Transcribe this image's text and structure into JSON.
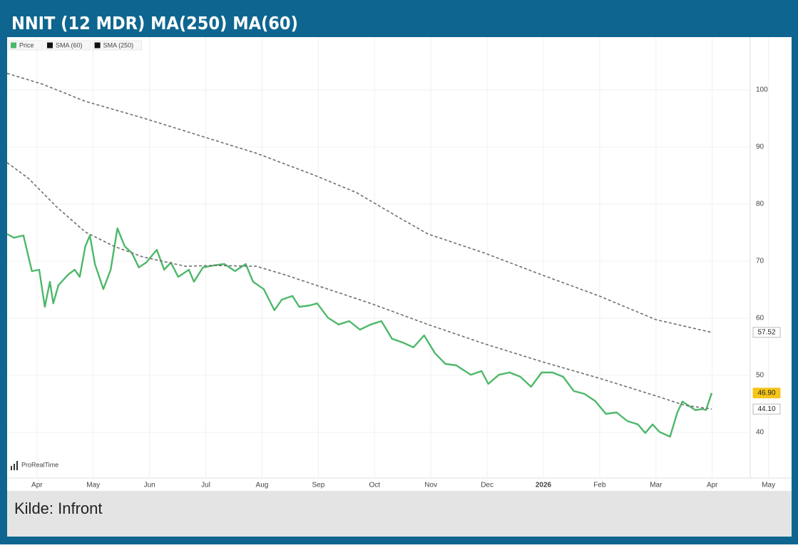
{
  "chart_data": {
    "type": "line",
    "title": "NNIT (12 MDR) MA(250) MA(60)",
    "source": "Kilde: Infront",
    "watermark": "ProRealTime",
    "grid": true,
    "xlim": [
      -0.53,
      13.41
    ],
    "xticks": [
      {
        "value": 0,
        "label": "Apr"
      },
      {
        "value": 1,
        "label": "May"
      },
      {
        "value": 2,
        "label": "Jun"
      },
      {
        "value": 3,
        "label": "Jul"
      },
      {
        "value": 4,
        "label": "Aug"
      },
      {
        "value": 5,
        "label": "Sep"
      },
      {
        "value": 6,
        "label": "Oct"
      },
      {
        "value": 7,
        "label": "Nov"
      },
      {
        "value": 8,
        "label": "Dec"
      },
      {
        "value": 9,
        "label": "2026"
      },
      {
        "value": 10,
        "label": "Feb"
      },
      {
        "value": 11,
        "label": "Mar"
      },
      {
        "value": 12,
        "label": "Apr"
      },
      {
        "value": 13,
        "label": "May"
      }
    ],
    "ylim": [
      32,
      108
    ],
    "yticks": [
      40,
      50,
      60,
      70,
      80,
      90,
      100
    ],
    "series": [
      {
        "name": "Price",
        "color": "#4db86a",
        "dashed": false,
        "x": [
          -0.53,
          -0.41,
          -0.24,
          -0.09,
          0.04,
          0.14,
          0.23,
          0.29,
          0.38,
          0.55,
          0.67,
          0.76,
          0.86,
          0.94,
          1.03,
          1.18,
          1.31,
          1.43,
          1.56,
          1.69,
          1.81,
          1.94,
          2.13,
          2.26,
          2.38,
          2.51,
          2.7,
          2.79,
          2.95,
          3.14,
          3.33,
          3.52,
          3.71,
          3.84,
          4.03,
          4.22,
          4.35,
          4.54,
          4.66,
          4.85,
          4.98,
          5.17,
          5.36,
          5.55,
          5.74,
          5.93,
          6.12,
          6.31,
          6.5,
          6.69,
          6.88,
          7.07,
          7.26,
          7.45,
          7.71,
          7.9,
          8.02,
          8.21,
          8.4,
          8.59,
          8.78,
          8.97,
          9.16,
          9.35,
          9.54,
          9.73,
          9.92,
          10.11,
          10.3,
          10.49,
          10.68,
          10.81,
          10.94,
          11.06,
          11.25,
          11.38,
          11.47,
          11.57,
          11.7,
          11.83,
          11.89,
          11.99
        ],
        "values": [
          74.75,
          74.1,
          74.5,
          68.25,
          68.5,
          62,
          66.4,
          62.6,
          65.75,
          67.6,
          68.5,
          67.25,
          72.6,
          74.5,
          69.5,
          65.1,
          68.5,
          75.75,
          72.6,
          71.4,
          68.9,
          69.75,
          72,
          68.5,
          69.75,
          67.25,
          68.5,
          66.4,
          68.9,
          69.25,
          69.5,
          68.25,
          69.5,
          66.4,
          65.1,
          61.4,
          63.25,
          63.9,
          62,
          62.25,
          62.6,
          60.1,
          58.9,
          59.5,
          58,
          58.9,
          59.5,
          56.4,
          55.75,
          54.9,
          57,
          53.9,
          52,
          51.75,
          50.1,
          50.75,
          48.5,
          50.1,
          50.5,
          49.75,
          48,
          50.5,
          50.5,
          49.75,
          47.25,
          46.75,
          45.5,
          43.25,
          43.5,
          42,
          41.4,
          39.9,
          41.4,
          40.1,
          39.25,
          43.5,
          45.4,
          44.75,
          43.9,
          44.1,
          43.9,
          46.9
        ],
        "value_labels": [
          null,
          null,
          null,
          null,
          null,
          null,
          null,
          null,
          null,
          null,
          null,
          null,
          null,
          null,
          null,
          null,
          null,
          null,
          null,
          null,
          null,
          null,
          null,
          null,
          null,
          null,
          null,
          null,
          null,
          null,
          null,
          null,
          null,
          null,
          null,
          null,
          null,
          null,
          null,
          null,
          null,
          null,
          null,
          null,
          null,
          null,
          null,
          null,
          null,
          null,
          null,
          null,
          null,
          null,
          null,
          null,
          null,
          null,
          null,
          null,
          null,
          null,
          null,
          null,
          null,
          null,
          null,
          null,
          null,
          null,
          null,
          null,
          null,
          null,
          null,
          null,
          null,
          null,
          null,
          null,
          null,
          "46.90"
        ]
      },
      {
        "name": "SMA (60)",
        "color": "#6f6f6f",
        "dashed": true,
        "x": [
          -0.53,
          -0.15,
          0.35,
          0.86,
          1.37,
          1.88,
          2.64,
          3.14,
          3.9,
          4.41,
          5.17,
          5.93,
          6.95,
          7.96,
          8.97,
          9.99,
          11.0,
          11.51,
          11.99
        ],
        "values": [
          87.25,
          84.5,
          79.5,
          75.1,
          72.6,
          70.75,
          69.1,
          69.25,
          69.1,
          67.6,
          65.1,
          62.6,
          58.9,
          55.5,
          52.4,
          49.5,
          46.4,
          44.75,
          44.1
        ],
        "value_labels": [
          null,
          null,
          null,
          null,
          null,
          null,
          null,
          null,
          null,
          null,
          null,
          null,
          null,
          null,
          null,
          null,
          null,
          null,
          "44.10"
        ]
      },
      {
        "name": "SMA (250)",
        "color": "#6f6f6f",
        "dashed": true,
        "x": [
          -0.53,
          0.1,
          0.86,
          1.88,
          2.89,
          3.9,
          4.92,
          5.68,
          6.44,
          6.95,
          7.96,
          8.97,
          9.99,
          11.0,
          11.99
        ],
        "values": [
          102.9,
          101,
          98,
          95.1,
          92,
          88.9,
          85.1,
          82,
          77.6,
          74.75,
          71.4,
          67.6,
          63.9,
          59.75,
          57.52
        ],
        "value_labels": [
          null,
          null,
          null,
          null,
          null,
          null,
          null,
          null,
          null,
          null,
          null,
          null,
          null,
          null,
          "57.52"
        ]
      }
    ]
  }
}
